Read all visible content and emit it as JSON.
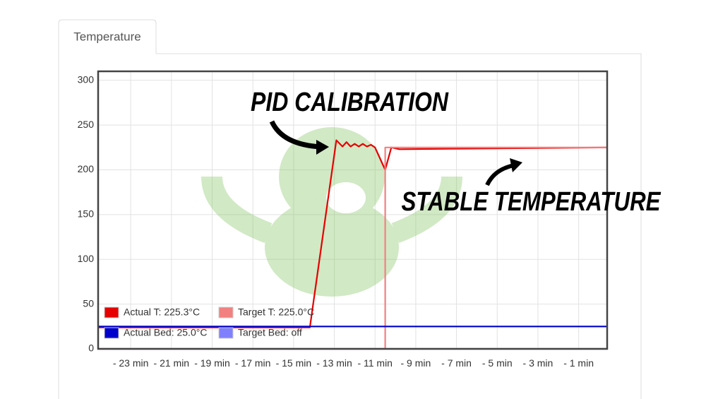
{
  "tab": "Temperature",
  "annotations": [
    "PID CALIBRATION",
    "STABLE TEMPERATURE"
  ],
  "chart_data": {
    "type": "line",
    "xlim": [
      -24.6,
      0.4
    ],
    "ylim": [
      0,
      310
    ],
    "yticks": [
      0,
      50,
      100,
      150,
      200,
      250,
      300
    ],
    "xticks": [
      {
        "value": -23,
        "label": "- 23 min"
      },
      {
        "value": -21,
        "label": "- 21 min"
      },
      {
        "value": -19,
        "label": "- 19 min"
      },
      {
        "value": -17,
        "label": "- 17 min"
      },
      {
        "value": -15,
        "label": "- 15 min"
      },
      {
        "value": -13,
        "label": "- 13 min"
      },
      {
        "value": -11,
        "label": "- 11 min"
      },
      {
        "value": -9,
        "label": "- 9 min"
      },
      {
        "value": -7,
        "label": "- 7 min"
      },
      {
        "value": -5,
        "label": "- 5 min"
      },
      {
        "value": -3,
        "label": "- 3 min"
      },
      {
        "value": -1,
        "label": "- 1 min"
      }
    ],
    "grid": true,
    "legend": "bottom-left",
    "series": [
      {
        "name": "Actual T: 225.3°C",
        "color": "#e60000",
        "x": [
          -24.6,
          -14.2,
          -12.9,
          -12.6,
          -12.4,
          -12.2,
          -12.0,
          -11.8,
          -11.6,
          -11.4,
          -11.2,
          -11.0,
          -10.5,
          -10.2,
          -9.8,
          0.4
        ],
        "values": [
          24,
          24,
          233,
          226,
          231,
          226,
          229,
          226,
          229,
          226,
          228,
          225,
          200,
          225,
          223,
          225
        ]
      },
      {
        "name": "Target T: 225.0°C",
        "color": "#f28080",
        "x": [
          -24.6,
          -10.5,
          -10.5,
          0.4
        ],
        "values": [
          0,
          0,
          225,
          225
        ]
      },
      {
        "name": "Actual Bed: 25.0°C",
        "color": "#0000cc",
        "x": [
          -24.6,
          0.4
        ],
        "values": [
          25,
          25
        ]
      },
      {
        "name": "Target Bed: off",
        "color": "#8080ff",
        "x": [
          -24.6,
          0.4
        ],
        "values": [
          0,
          0
        ]
      }
    ]
  }
}
